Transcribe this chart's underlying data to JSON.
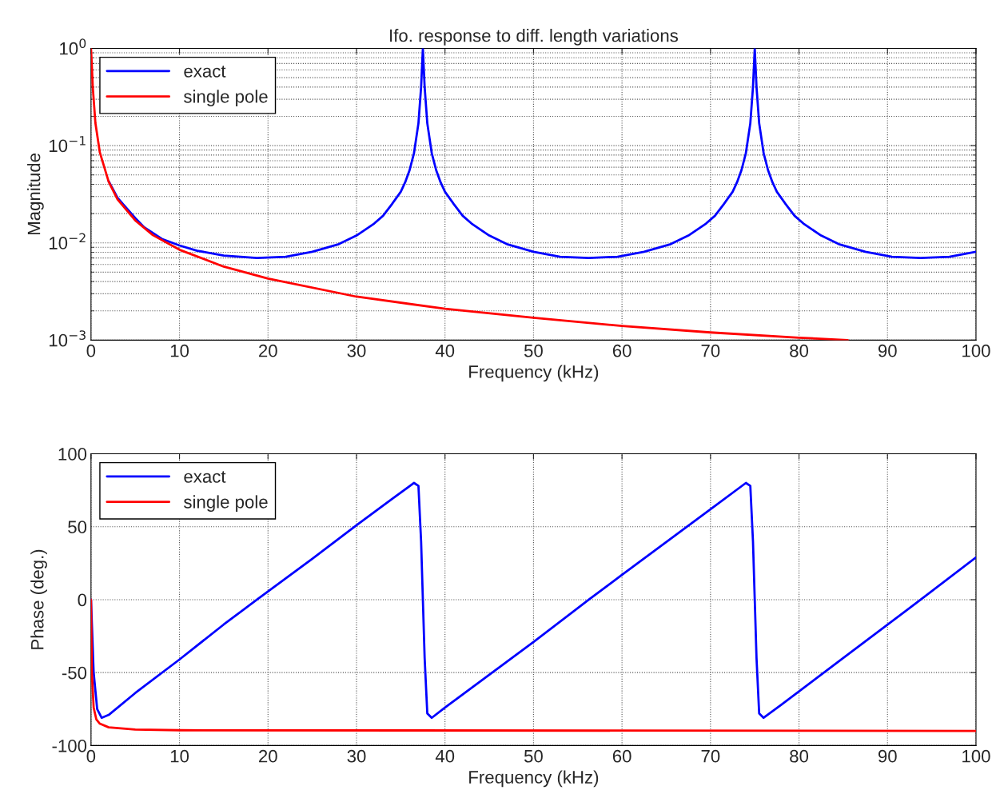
{
  "chart_data": [
    {
      "type": "line",
      "title": "Ifo. response to diff. length variations",
      "xlabel": "Frequency (kHz)",
      "ylabel": "Magnitude",
      "log": "y",
      "grid": true,
      "legend": "top left",
      "xlim": [
        0,
        100
      ],
      "xticks": [
        0,
        10,
        20,
        30,
        40,
        50,
        60,
        70,
        80,
        90,
        100
      ],
      "ylim": [
        0.001,
        1
      ],
      "yticks": [
        {
          "value": 0.001,
          "label": "10$^{−3}$"
        },
        {
          "value": 0.01,
          "label": "10$^{−2}$"
        },
        {
          "value": 0.1,
          "label": "10$^{−1}$"
        },
        {
          "value": 1,
          "label": "10$^{0}$"
        }
      ],
      "series": [
        {
          "name": "exact",
          "color": "#0000ff",
          "x": [
            2,
            3,
            5,
            6,
            8,
            10,
            12,
            15,
            18.75,
            22,
            25,
            28,
            30,
            32,
            33,
            34,
            35,
            35.5,
            36,
            36.5,
            37,
            37.3,
            37.5,
            37.7,
            38,
            38.5,
            39,
            39.5,
            40,
            41,
            42,
            43,
            45,
            47,
            50,
            53,
            56.25,
            59.5,
            62.5,
            65.5,
            67.5,
            69.5,
            70.5,
            71.5,
            72.5,
            73,
            73.5,
            74,
            74.5,
            74.8,
            75,
            75.2,
            75.5,
            76,
            76.5,
            77,
            77.5,
            78.5,
            79.5,
            80.5,
            82.5,
            84.5,
            87.5,
            90.5,
            93.75,
            97,
            100
          ],
          "values": [
            0.043,
            0.029,
            0.018,
            0.0145,
            0.011,
            0.0094,
            0.0083,
            0.0074,
            0.007,
            0.0072,
            0.0081,
            0.0097,
            0.0119,
            0.0158,
            0.019,
            0.025,
            0.0335,
            0.042,
            0.056,
            0.084,
            0.17,
            0.4,
            1,
            0.4,
            0.17,
            0.084,
            0.056,
            0.042,
            0.0335,
            0.025,
            0.019,
            0.0158,
            0.0119,
            0.0097,
            0.0081,
            0.0072,
            0.007,
            0.0072,
            0.0081,
            0.0097,
            0.0119,
            0.0158,
            0.019,
            0.025,
            0.0335,
            0.042,
            0.056,
            0.084,
            0.17,
            0.4,
            1,
            0.4,
            0.17,
            0.084,
            0.056,
            0.042,
            0.0335,
            0.025,
            0.019,
            0.0158,
            0.0119,
            0.0097,
            0.0081,
            0.0072,
            0.007,
            0.0072,
            0.0081
          ]
        },
        {
          "name": "single pole",
          "color": "#ff0000",
          "x": [
            0,
            0.1,
            0.2,
            0.5,
            1,
            2,
            3,
            5,
            7,
            10,
            15,
            20,
            30,
            40,
            50,
            60,
            70,
            80,
            85.5
          ],
          "values": [
            1,
            0.65,
            0.4,
            0.17,
            0.085,
            0.0425,
            0.028,
            0.017,
            0.012,
            0.0085,
            0.0057,
            0.0043,
            0.0028,
            0.0021,
            0.0017,
            0.0014,
            0.0012,
            0.00106,
            0.001
          ]
        }
      ]
    },
    {
      "type": "line",
      "xlabel": "Frequency (kHz)",
      "ylabel": "Phase (deg.)",
      "grid": true,
      "legend": "top left",
      "xlim": [
        0,
        100
      ],
      "xticks": [
        0,
        10,
        20,
        30,
        40,
        50,
        60,
        70,
        80,
        90,
        100
      ],
      "ylim": [
        -100,
        100
      ],
      "yticks": [
        -100,
        -50,
        0,
        50,
        100
      ],
      "series": [
        {
          "name": "exact",
          "color": "#0000ff",
          "x": [
            0,
            0.3,
            0.7,
            1.2,
            2,
            5,
            10,
            15,
            18.75,
            25,
            30,
            34,
            36.5,
            37,
            37.3,
            37.5,
            37.7,
            38,
            38.5,
            40,
            50,
            56.25,
            60,
            70,
            74,
            74.5,
            74.8,
            75,
            75.2,
            75.5,
            76,
            78,
            85,
            93.75,
            100
          ],
          "values": [
            0,
            -50,
            -75,
            -81,
            -79,
            -64,
            -41,
            -17,
            0,
            28,
            51,
            69,
            80,
            78,
            40,
            0,
            -40,
            -78,
            -81,
            -74,
            -29,
            0,
            17,
            62,
            80,
            78,
            40,
            0,
            -40,
            -78,
            -81,
            -72,
            -40,
            0,
            29
          ]
        },
        {
          "name": "single pole",
          "color": "#ff0000",
          "x": [
            0,
            0.1,
            0.3,
            0.6,
            1,
            2,
            5,
            10,
            100
          ],
          "values": [
            0,
            -50,
            -74,
            -82,
            -85,
            -87.5,
            -89,
            -89.5,
            -90
          ]
        }
      ]
    }
  ]
}
